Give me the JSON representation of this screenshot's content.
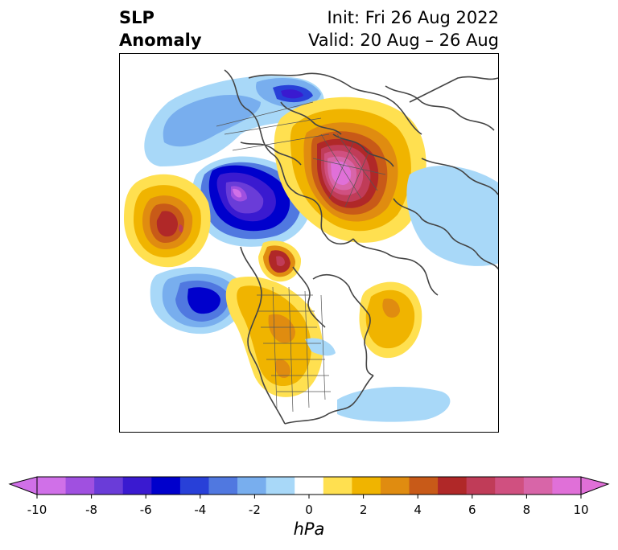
{
  "title": {
    "left_line1": "SLP",
    "left_line2": "Anomaly",
    "right_line1": "Init: Fri 26 Aug 2022",
    "right_line2": "Valid: 20 Aug – 26 Aug"
  },
  "colorbar": {
    "unit": "hPa",
    "ticks": [
      "-10",
      "-8",
      "-6",
      "-4",
      "-2",
      "0",
      "2",
      "4",
      "6",
      "8",
      "10"
    ],
    "bins": [
      "#d070e8",
      "#a050e0",
      "#6a3cd8",
      "#3a1ad0",
      "#0000cc",
      "#2840d8",
      "#5078e0",
      "#78aeee",
      "#a8d8f8",
      "#ffffff",
      "#ffe050",
      "#f0b400",
      "#e08c10",
      "#c85a18",
      "#b02828",
      "#c03c58",
      "#d05080",
      "#d865a8",
      "#e070d8"
    ],
    "extend_low_color": "#d070e8",
    "extend_high_color": "#e070d8"
  }
}
